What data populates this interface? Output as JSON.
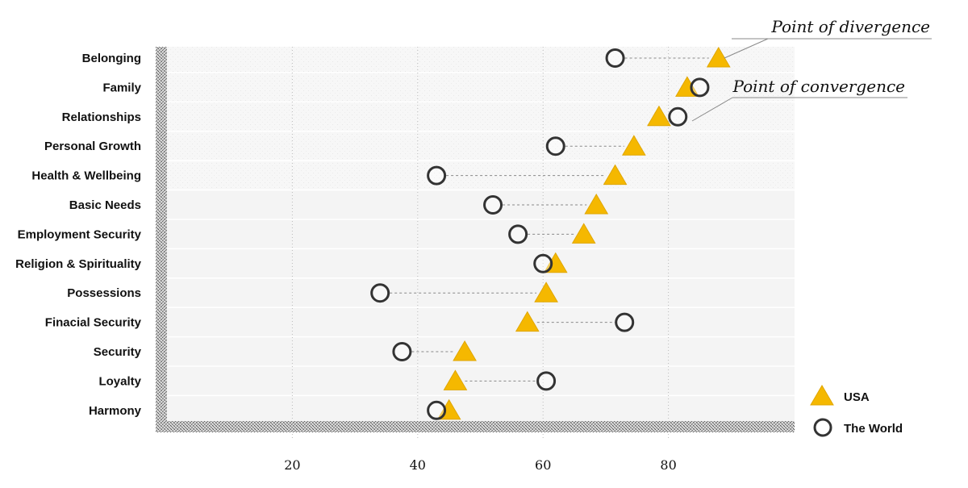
{
  "chart_data": {
    "type": "scatter",
    "title": "",
    "xlabel": "",
    "ylabel": "",
    "xlim": [
      0,
      100
    ],
    "x_ticks": [
      20,
      40,
      60,
      80
    ],
    "grid": true,
    "legend_placement": "bottom-right",
    "categories": [
      "Belonging",
      "Family",
      "Relationships",
      "Personal Growth",
      "Health & Wellbeing",
      "Basic Needs",
      "Employment Security",
      "Religion & Spirituality",
      "Possessions",
      "Finacial Security",
      "Security",
      "Loyalty",
      "Harmony"
    ],
    "series": [
      {
        "name": "USA",
        "marker": "triangle",
        "color": "#F5B800",
        "values": [
          88,
          83,
          78.5,
          74.5,
          71.5,
          68.5,
          66.5,
          62,
          60.5,
          57.5,
          47.5,
          46,
          45
        ]
      },
      {
        "name": "The World",
        "marker": "circle",
        "color": "#333333",
        "values": [
          71.5,
          85,
          81.5,
          62,
          43,
          52,
          56,
          60,
          34,
          73,
          37.5,
          60.5,
          43
        ]
      }
    ],
    "annotations": [
      {
        "text": "Point of divergence",
        "category": "Belonging"
      },
      {
        "text": "Point of convergence",
        "category": "Relationships"
      }
    ]
  },
  "colors": {
    "usa": "#F5B800",
    "world": "#333333",
    "axis": "#555555",
    "grid": "#bbbbbb"
  }
}
